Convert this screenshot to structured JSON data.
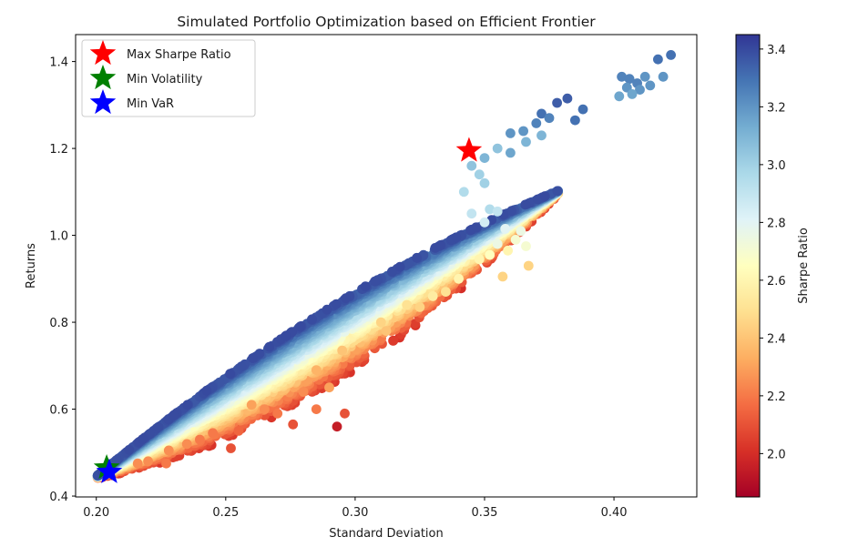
{
  "chart_data": {
    "type": "scatter",
    "title": "Simulated Portfolio Optimization based on Efficient Frontier",
    "xlabel": "Standard Deviation",
    "ylabel": "Returns",
    "xlim": [
      0.192,
      0.432
    ],
    "ylim": [
      0.398,
      1.462
    ],
    "xticks": [
      0.2,
      0.25,
      0.3,
      0.35,
      0.4
    ],
    "xtick_labels": [
      "0.20",
      "0.25",
      "0.30",
      "0.35",
      "0.40"
    ],
    "yticks": [
      0.4,
      0.6,
      0.8,
      1.0,
      1.2,
      1.4
    ],
    "ytick_labels": [
      "0.4",
      "0.6",
      "0.8",
      "1.0",
      "1.2",
      "1.4"
    ],
    "colorbar": {
      "label": "Sharpe Ratio",
      "colormap": "RdYlBu",
      "range": [
        1.85,
        3.45
      ],
      "ticks": [
        2.0,
        2.2,
        2.4,
        2.6,
        2.8,
        3.0,
        3.2,
        3.4
      ],
      "tick_labels": [
        "2.0",
        "2.2",
        "2.4",
        "2.6",
        "2.8",
        "3.0",
        "3.2",
        "3.4"
      ]
    },
    "grid": false,
    "legend": {
      "position": "top-left",
      "entries": [
        {
          "label": "Max Sharpe Ratio",
          "marker": "star",
          "color": "#ff0000"
        },
        {
          "label": "Min Volatility",
          "marker": "star",
          "color": "#008000"
        },
        {
          "label": "Min VaR",
          "marker": "star",
          "color": "#0000ff"
        }
      ]
    },
    "highlights": [
      {
        "name": "Max Sharpe Ratio",
        "x": 0.344,
        "y": 1.195,
        "color": "#ff0000"
      },
      {
        "name": "Min Volatility",
        "x": 0.204,
        "y": 0.465,
        "color": "#008000"
      },
      {
        "name": "Min VaR",
        "x": 0.205,
        "y": 0.455,
        "color": "#0000ff"
      }
    ],
    "points": [
      {
        "x": 0.382,
        "y": 1.315,
        "s": 3.35
      },
      {
        "x": 0.378,
        "y": 1.305,
        "s": 3.35
      },
      {
        "x": 0.388,
        "y": 1.29,
        "s": 3.3
      },
      {
        "x": 0.372,
        "y": 1.28,
        "s": 3.3
      },
      {
        "x": 0.375,
        "y": 1.27,
        "s": 3.25
      },
      {
        "x": 0.385,
        "y": 1.265,
        "s": 3.3
      },
      {
        "x": 0.37,
        "y": 1.258,
        "s": 3.25
      },
      {
        "x": 0.365,
        "y": 1.24,
        "s": 3.2
      },
      {
        "x": 0.36,
        "y": 1.235,
        "s": 3.2
      },
      {
        "x": 0.372,
        "y": 1.23,
        "s": 3.1
      },
      {
        "x": 0.366,
        "y": 1.215,
        "s": 3.1
      },
      {
        "x": 0.355,
        "y": 1.2,
        "s": 3.05
      },
      {
        "x": 0.36,
        "y": 1.19,
        "s": 3.15
      },
      {
        "x": 0.35,
        "y": 1.178,
        "s": 3.1
      },
      {
        "x": 0.345,
        "y": 1.16,
        "s": 3.05
      },
      {
        "x": 0.348,
        "y": 1.14,
        "s": 3.0
      },
      {
        "x": 0.35,
        "y": 1.12,
        "s": 3.0
      },
      {
        "x": 0.342,
        "y": 1.1,
        "s": 2.95
      },
      {
        "x": 0.422,
        "y": 1.415,
        "s": 3.3
      },
      {
        "x": 0.417,
        "y": 1.405,
        "s": 3.3
      },
      {
        "x": 0.403,
        "y": 1.365,
        "s": 3.25
      },
      {
        "x": 0.406,
        "y": 1.36,
        "s": 3.25
      },
      {
        "x": 0.412,
        "y": 1.365,
        "s": 3.2
      },
      {
        "x": 0.409,
        "y": 1.35,
        "s": 3.25
      },
      {
        "x": 0.414,
        "y": 1.345,
        "s": 3.2
      },
      {
        "x": 0.405,
        "y": 1.34,
        "s": 3.2
      },
      {
        "x": 0.41,
        "y": 1.335,
        "s": 3.2
      },
      {
        "x": 0.402,
        "y": 1.32,
        "s": 3.15
      },
      {
        "x": 0.407,
        "y": 1.325,
        "s": 3.15
      },
      {
        "x": 0.419,
        "y": 1.365,
        "s": 3.2
      },
      {
        "x": 0.352,
        "y": 1.06,
        "s": 2.95
      },
      {
        "x": 0.355,
        "y": 1.055,
        "s": 2.9
      },
      {
        "x": 0.345,
        "y": 1.05,
        "s": 2.9
      },
      {
        "x": 0.35,
        "y": 1.03,
        "s": 2.85
      },
      {
        "x": 0.358,
        "y": 1.015,
        "s": 2.8
      },
      {
        "x": 0.364,
        "y": 1.01,
        "s": 2.75
      },
      {
        "x": 0.355,
        "y": 0.98,
        "s": 2.75
      },
      {
        "x": 0.362,
        "y": 0.99,
        "s": 2.7
      },
      {
        "x": 0.352,
        "y": 0.955,
        "s": 2.65
      },
      {
        "x": 0.359,
        "y": 0.965,
        "s": 2.6
      },
      {
        "x": 0.348,
        "y": 0.945,
        "s": 2.6
      },
      {
        "x": 0.366,
        "y": 0.975,
        "s": 2.7
      },
      {
        "x": 0.357,
        "y": 0.905,
        "s": 2.45
      },
      {
        "x": 0.367,
        "y": 0.93,
        "s": 2.45
      },
      {
        "x": 0.34,
        "y": 0.9,
        "s": 2.6
      },
      {
        "x": 0.33,
        "y": 0.86,
        "s": 2.55
      },
      {
        "x": 0.335,
        "y": 0.87,
        "s": 2.5
      },
      {
        "x": 0.32,
        "y": 0.84,
        "s": 2.5
      },
      {
        "x": 0.325,
        "y": 0.835,
        "s": 2.45
      },
      {
        "x": 0.31,
        "y": 0.8,
        "s": 2.45
      },
      {
        "x": 0.312,
        "y": 0.78,
        "s": 2.4
      },
      {
        "x": 0.295,
        "y": 0.735,
        "s": 2.4
      },
      {
        "x": 0.285,
        "y": 0.69,
        "s": 2.35
      },
      {
        "x": 0.28,
        "y": 0.64,
        "s": 2.25
      },
      {
        "x": 0.29,
        "y": 0.65,
        "s": 2.3
      },
      {
        "x": 0.285,
        "y": 0.6,
        "s": 2.2
      },
      {
        "x": 0.296,
        "y": 0.59,
        "s": 2.1
      },
      {
        "x": 0.293,
        "y": 0.56,
        "s": 1.95
      },
      {
        "x": 0.276,
        "y": 0.565,
        "s": 2.1
      },
      {
        "x": 0.27,
        "y": 0.59,
        "s": 2.2
      },
      {
        "x": 0.265,
        "y": 0.6,
        "s": 2.25
      },
      {
        "x": 0.26,
        "y": 0.61,
        "s": 2.3
      },
      {
        "x": 0.255,
        "y": 0.55,
        "s": 2.15
      },
      {
        "x": 0.252,
        "y": 0.51,
        "s": 2.1
      },
      {
        "x": 0.245,
        "y": 0.545,
        "s": 2.2
      },
      {
        "x": 0.24,
        "y": 0.53,
        "s": 2.2
      },
      {
        "x": 0.235,
        "y": 0.52,
        "s": 2.25
      },
      {
        "x": 0.228,
        "y": 0.505,
        "s": 2.25
      },
      {
        "x": 0.227,
        "y": 0.475,
        "s": 2.2
      },
      {
        "x": 0.22,
        "y": 0.48,
        "s": 2.25
      },
      {
        "x": 0.216,
        "y": 0.475,
        "s": 2.25
      }
    ]
  }
}
